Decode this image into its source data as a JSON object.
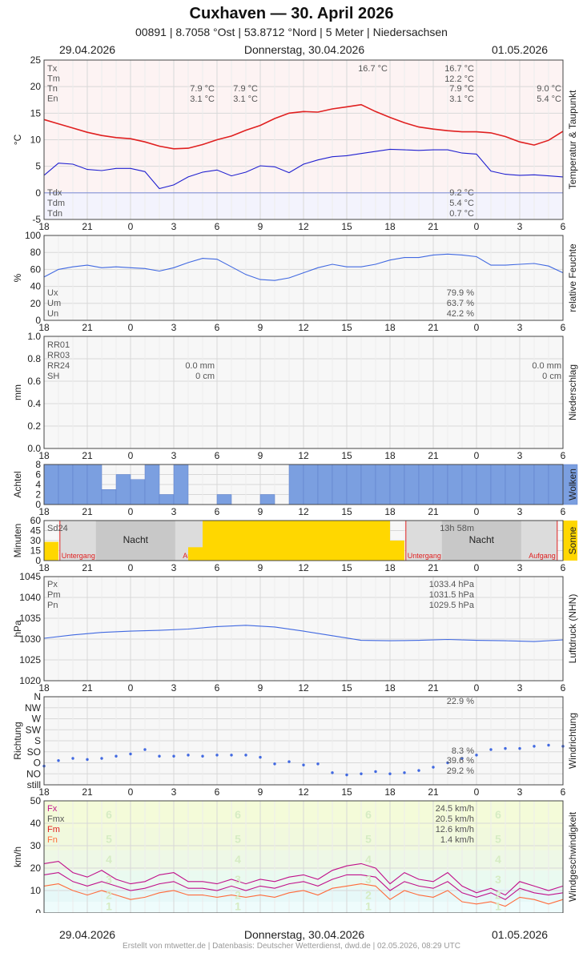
{
  "header": {
    "title": "Cuxhaven  —  30. April 2026",
    "subtitle": "00891  |  8.7058 °Ost  |  53.8712 °Nord  |  5 Meter  |  Niedersachsen",
    "date_left": "29.04.2026",
    "date_center": "Donnerstag, 30.04.2026",
    "date_right": "01.05.2026"
  },
  "footer": {
    "credit": "Erstellt von mtwetter.de | Datenbasis: Deutscher Wetterdienst, dwd.de | 02.05.2026, 08:29 UTC"
  },
  "colors": {
    "temperature": "#e02020",
    "dewpoint": "#2020d0",
    "humidity": "#4169e1",
    "pressure": "#4169e1",
    "cloud": "#7b9fe0",
    "sun": "#ffd700",
    "wind_fx": "#c0108a",
    "wind_fm": "#ff6a3a"
  },
  "x_axis": {
    "ticks": [
      "18",
      "21",
      "0",
      "3",
      "6",
      "9",
      "12",
      "15",
      "18",
      "21",
      "0",
      "3",
      "6"
    ],
    "start_hour": "18 (29.04.2026)",
    "end_hour": "6 (01.05.2026)"
  },
  "chart_data": [
    {
      "type": "line",
      "ylabel": "°C",
      "side_label": "Temperatur & Taupunkt",
      "ylim": [
        -5,
        25
      ],
      "yticks": [
        "25",
        "20",
        "15",
        "10",
        "5",
        "0",
        "-5"
      ],
      "series": [
        {
          "name": "Temperatur",
          "color": "#e02020",
          "x": [
            18,
            19,
            20,
            21,
            22,
            23,
            24,
            25,
            26,
            27,
            28,
            29,
            30,
            31,
            32,
            33,
            34,
            35,
            36,
            37,
            38,
            39,
            40,
            41,
            42,
            43,
            44,
            45,
            46,
            47,
            48,
            49,
            50,
            51,
            52,
            53,
            54
          ],
          "values": [
            13.8,
            13.0,
            12.2,
            11.4,
            10.8,
            10.4,
            10.2,
            9.6,
            8.8,
            8.3,
            8.4,
            9.1,
            10.0,
            10.7,
            11.8,
            12.7,
            14.0,
            15.0,
            15.3,
            15.2,
            15.8,
            16.2,
            16.6,
            15.3,
            14.2,
            13.2,
            12.4,
            12.0,
            11.7,
            11.5,
            11.5,
            11.3,
            10.6,
            9.6,
            9.0,
            9.9,
            11.6
          ]
        },
        {
          "name": "Taupunkt",
          "color": "#2020d0",
          "x": [
            18,
            19,
            20,
            21,
            22,
            23,
            24,
            25,
            26,
            27,
            28,
            29,
            30,
            31,
            32,
            33,
            34,
            35,
            36,
            37,
            38,
            39,
            40,
            41,
            42,
            43,
            44,
            45,
            46,
            47,
            48,
            49,
            50,
            51,
            52,
            53,
            54
          ],
          "values": [
            3.3,
            5.6,
            5.4,
            4.4,
            4.2,
            4.6,
            4.6,
            4.0,
            0.8,
            1.5,
            3.0,
            3.9,
            4.3,
            3.2,
            3.9,
            5.1,
            4.9,
            3.8,
            5.4,
            6.2,
            6.8,
            7.0,
            7.4,
            7.8,
            8.2,
            8.1,
            8.0,
            8.1,
            8.1,
            7.5,
            7.3,
            4.1,
            3.5,
            3.3,
            3.4,
            3.2,
            3.0
          ]
        }
      ],
      "stats_left": [
        {
          "label": "Tx",
          "value": ""
        },
        {
          "label": "Tm",
          "value": ""
        },
        {
          "label": "Tn",
          "value": "7.9 °C",
          "value2": "7.9 °C"
        },
        {
          "label": "En",
          "value": "3.1 °C",
          "value2": "3.1 °C"
        }
      ],
      "stats_mid": {
        "tx": "16.7 °C"
      },
      "stats_right": {
        "tx": "16.7 °C",
        "tm": "12.2 °C",
        "tn": "7.9 °C",
        "en": "3.1 °C",
        "tn2": "9.0 °C",
        "en2": "5.4 °C"
      },
      "stats_dew": [
        {
          "label": "Tdx",
          "value": "9.2 °C"
        },
        {
          "label": "Tdm",
          "value": "5.4 °C"
        },
        {
          "label": "Tdn",
          "value": "0.7 °C"
        }
      ]
    },
    {
      "type": "line",
      "ylabel": "%",
      "side_label": "relative Feuchte",
      "ylim": [
        0,
        100
      ],
      "yticks": [
        "100",
        "80",
        "60",
        "40",
        "20",
        "0"
      ],
      "series": [
        {
          "name": "Feuchte",
          "color": "#4169e1",
          "x": [
            18,
            19,
            20,
            21,
            22,
            23,
            24,
            25,
            26,
            27,
            28,
            29,
            30,
            31,
            32,
            33,
            34,
            35,
            36,
            37,
            38,
            39,
            40,
            41,
            42,
            43,
            44,
            45,
            46,
            47,
            48,
            49,
            50,
            51,
            52,
            53,
            54
          ],
          "values": [
            51,
            60,
            63,
            65,
            62,
            63,
            62,
            61,
            58,
            62,
            68,
            73,
            72,
            63,
            54,
            48,
            47,
            50,
            56,
            62,
            66,
            63,
            63,
            66,
            71,
            74,
            74,
            77,
            78,
            77,
            75,
            65,
            65,
            66,
            67,
            64,
            56
          ]
        }
      ],
      "stats": [
        {
          "label": "Ux",
          "value": "79.9 %"
        },
        {
          "label": "Um",
          "value": "63.7 %"
        },
        {
          "label": "Un",
          "value": "42.2 %"
        }
      ]
    },
    {
      "type": "bar",
      "ylabel": "mm",
      "side_label": "Niederschlag",
      "ylim": [
        0,
        1.0
      ],
      "yticks": [
        "1.0",
        "0.8",
        "0.6",
        "0.4",
        "0.2",
        "0.0"
      ],
      "series": [
        {
          "name": "RR01",
          "values": []
        }
      ],
      "stats": [
        {
          "label": "RR01",
          "value": ""
        },
        {
          "label": "RR03",
          "value": ""
        },
        {
          "label": "RR24",
          "value": "0.0 mm",
          "value_right": "0.0 mm"
        },
        {
          "label": "SH",
          "value": "0 cm",
          "value_right": "0 cm"
        }
      ]
    },
    {
      "type": "bar",
      "ylabel": "Achtel",
      "side_label": "Wolken",
      "ylim": [
        0,
        8
      ],
      "yticks": [
        "8",
        "6",
        "4",
        "2",
        "0"
      ],
      "series": [
        {
          "name": "Bedeckung",
          "color": "#7b9fe0",
          "x": [
            18,
            19,
            20,
            21,
            22,
            23,
            24,
            25,
            26,
            27,
            28,
            29,
            30,
            31,
            32,
            33,
            34,
            35,
            36,
            37,
            38,
            39,
            40,
            41,
            42,
            43,
            44,
            45,
            46,
            47,
            48,
            49,
            50,
            51,
            52,
            53,
            54
          ],
          "values": [
            8,
            8,
            8,
            8,
            3,
            6,
            5,
            8,
            2,
            8,
            0,
            0,
            2,
            0,
            0,
            2,
            0,
            8,
            8,
            8,
            8,
            8,
            8,
            8,
            8,
            8,
            8,
            8,
            8,
            8,
            8,
            8,
            8,
            8,
            8,
            8,
            8
          ]
        }
      ]
    },
    {
      "type": "bar",
      "ylabel": "Minuten",
      "side_label": "Sonne",
      "ylim": [
        0,
        60
      ],
      "yticks": [
        "60",
        "45",
        "30",
        "15",
        "0"
      ],
      "series": [
        {
          "name": "Sonnenschein",
          "color": "#ffd700",
          "x": [
            18,
            19,
            20,
            21,
            22,
            23,
            24,
            25,
            26,
            27,
            28,
            29,
            30,
            31,
            32,
            33,
            34,
            35,
            36,
            37,
            38,
            39,
            40,
            41,
            42,
            43,
            44,
            45,
            46,
            47,
            48,
            49,
            50,
            51,
            52,
            53,
            54
          ],
          "values": [
            28,
            0,
            0,
            0,
            0,
            0,
            0,
            0,
            0,
            0,
            20,
            60,
            60,
            60,
            60,
            60,
            60,
            60,
            60,
            60,
            60,
            60,
            60,
            60,
            30,
            0,
            0,
            0,
            0,
            0,
            0,
            0,
            0,
            0,
            0,
            0,
            60
          ]
        }
      ],
      "labels": {
        "total": "Sd24",
        "night": "Nacht",
        "sunset": "Untergang",
        "sunrise": "Aufgang",
        "sun_total": "13h 58m"
      }
    },
    {
      "type": "line",
      "ylabel": "hPa",
      "side_label": "Luftdruck (NHN)",
      "ylim": [
        1020,
        1045
      ],
      "yticks": [
        "1045",
        "1040",
        "1035",
        "1030",
        "1025",
        "1020"
      ],
      "series": [
        {
          "name": "Luftdruck",
          "color": "#4169e1",
          "x": [
            18,
            20,
            22,
            24,
            26,
            28,
            30,
            32,
            34,
            36,
            38,
            40,
            42,
            44,
            46,
            48,
            50,
            52,
            54
          ],
          "values": [
            1030.2,
            1031.0,
            1031.6,
            1031.9,
            1032.1,
            1032.4,
            1033.0,
            1033.3,
            1032.9,
            1031.9,
            1030.8,
            1029.7,
            1029.6,
            1029.7,
            1029.9,
            1029.7,
            1029.6,
            1029.4,
            1029.8
          ]
        }
      ],
      "stats": [
        {
          "label": "Px",
          "value": "1033.4 hPa"
        },
        {
          "label": "Pm",
          "value": "1031.5 hPa"
        },
        {
          "label": "Pn",
          "value": "1029.5 hPa"
        }
      ]
    },
    {
      "type": "scatter",
      "ylabel": "Richtung",
      "side_label": "Windrichtung",
      "ylim": [
        0,
        8
      ],
      "yticks": [
        "N",
        "NW",
        "W",
        "SW",
        "S",
        "SO",
        "O",
        "NO",
        "still"
      ],
      "series": [
        {
          "name": "Windrichtung",
          "color": "#4169e1",
          "x": [
            18,
            19,
            20,
            21,
            22,
            23,
            24,
            25,
            26,
            27,
            28,
            29,
            30,
            31,
            32,
            33,
            34,
            35,
            36,
            37,
            38,
            39,
            40,
            41,
            42,
            43,
            44,
            45,
            46,
            47,
            48,
            49,
            50,
            51,
            52,
            53,
            54
          ],
          "values": [
            1.7,
            2.2,
            2.4,
            2.3,
            2.4,
            2.6,
            2.8,
            3.2,
            2.6,
            2.6,
            2.7,
            2.6,
            2.7,
            2.7,
            2.7,
            2.5,
            1.9,
            2.1,
            1.8,
            1.9,
            1.1,
            0.9,
            1.0,
            1.2,
            1.0,
            1.1,
            1.3,
            1.6,
            2.0,
            2.4,
            2.7,
            3.2,
            3.3,
            3.3,
            3.5,
            3.6,
            3.5
          ]
        }
      ],
      "stats": [
        {
          "label": "Nord",
          "value": "22.9 %"
        },
        {
          "label": "SO",
          "value": "8.3 %"
        },
        {
          "label": "O",
          "value": "39.6 %"
        },
        {
          "label": "NO",
          "value": "29.2 %"
        }
      ]
    },
    {
      "type": "line",
      "ylabel": "km/h",
      "side_label": "Windgeschwindigkeit",
      "ylim": [
        0,
        50
      ],
      "yticks": [
        "50",
        "40",
        "30",
        "20",
        "10",
        "0"
      ],
      "bft_labels": [
        "1",
        "2",
        "3",
        "4",
        "5",
        "6"
      ],
      "series": [
        {
          "name": "Fx",
          "color": "#c0108a",
          "x": [
            18,
            19,
            20,
            21,
            22,
            23,
            24,
            25,
            26,
            27,
            28,
            29,
            30,
            31,
            32,
            33,
            34,
            35,
            36,
            37,
            38,
            39,
            40,
            41,
            42,
            43,
            44,
            45,
            46,
            47,
            48,
            49,
            50,
            51,
            52,
            53,
            54
          ],
          "values": [
            22,
            23,
            18,
            16,
            19,
            15,
            13,
            14,
            17,
            18,
            14,
            14,
            13,
            15,
            13,
            15,
            14,
            16,
            17,
            15,
            19,
            21,
            22,
            20,
            13,
            18,
            15,
            14,
            18,
            12,
            9,
            11,
            8,
            14,
            12,
            10,
            12
          ]
        },
        {
          "name": "Fmx",
          "color": "#c0108a",
          "x": [
            18,
            19,
            20,
            21,
            22,
            23,
            24,
            25,
            26,
            27,
            28,
            29,
            30,
            31,
            32,
            33,
            34,
            35,
            36,
            37,
            38,
            39,
            40,
            41,
            42,
            43,
            44,
            45,
            46,
            47,
            48,
            49,
            50,
            51,
            52,
            53,
            54
          ],
          "values": [
            17,
            18,
            14,
            12,
            14,
            12,
            10,
            11,
            13,
            14,
            11,
            11,
            10,
            12,
            10,
            12,
            11,
            13,
            14,
            12,
            15,
            17,
            17,
            16,
            10,
            14,
            12,
            11,
            14,
            9,
            7,
            9,
            6,
            11,
            9,
            8,
            9
          ]
        },
        {
          "name": "Fm",
          "color": "#ff6a3a",
          "x": [
            18,
            19,
            20,
            21,
            22,
            23,
            24,
            25,
            26,
            27,
            28,
            29,
            30,
            31,
            32,
            33,
            34,
            35,
            36,
            37,
            38,
            39,
            40,
            41,
            42,
            43,
            44,
            45,
            46,
            47,
            48,
            49,
            50,
            51,
            52,
            53,
            54
          ],
          "values": [
            12,
            13,
            10,
            8,
            10,
            8,
            6,
            7,
            9,
            10,
            8,
            8,
            7,
            8,
            7,
            8,
            7,
            9,
            10,
            8,
            11,
            12,
            13,
            12,
            6,
            10,
            8,
            7,
            10,
            5,
            4,
            5,
            3,
            7,
            6,
            4,
            6
          ]
        }
      ],
      "stats": [
        {
          "label": "Fx",
          "value": "24.5 km/h"
        },
        {
          "label": "Fmx",
          "value": "20.5 km/h"
        },
        {
          "label": "Fm",
          "value": "12.6 km/h"
        },
        {
          "label": "Fn",
          "value": "1.4 km/h"
        }
      ]
    }
  ]
}
